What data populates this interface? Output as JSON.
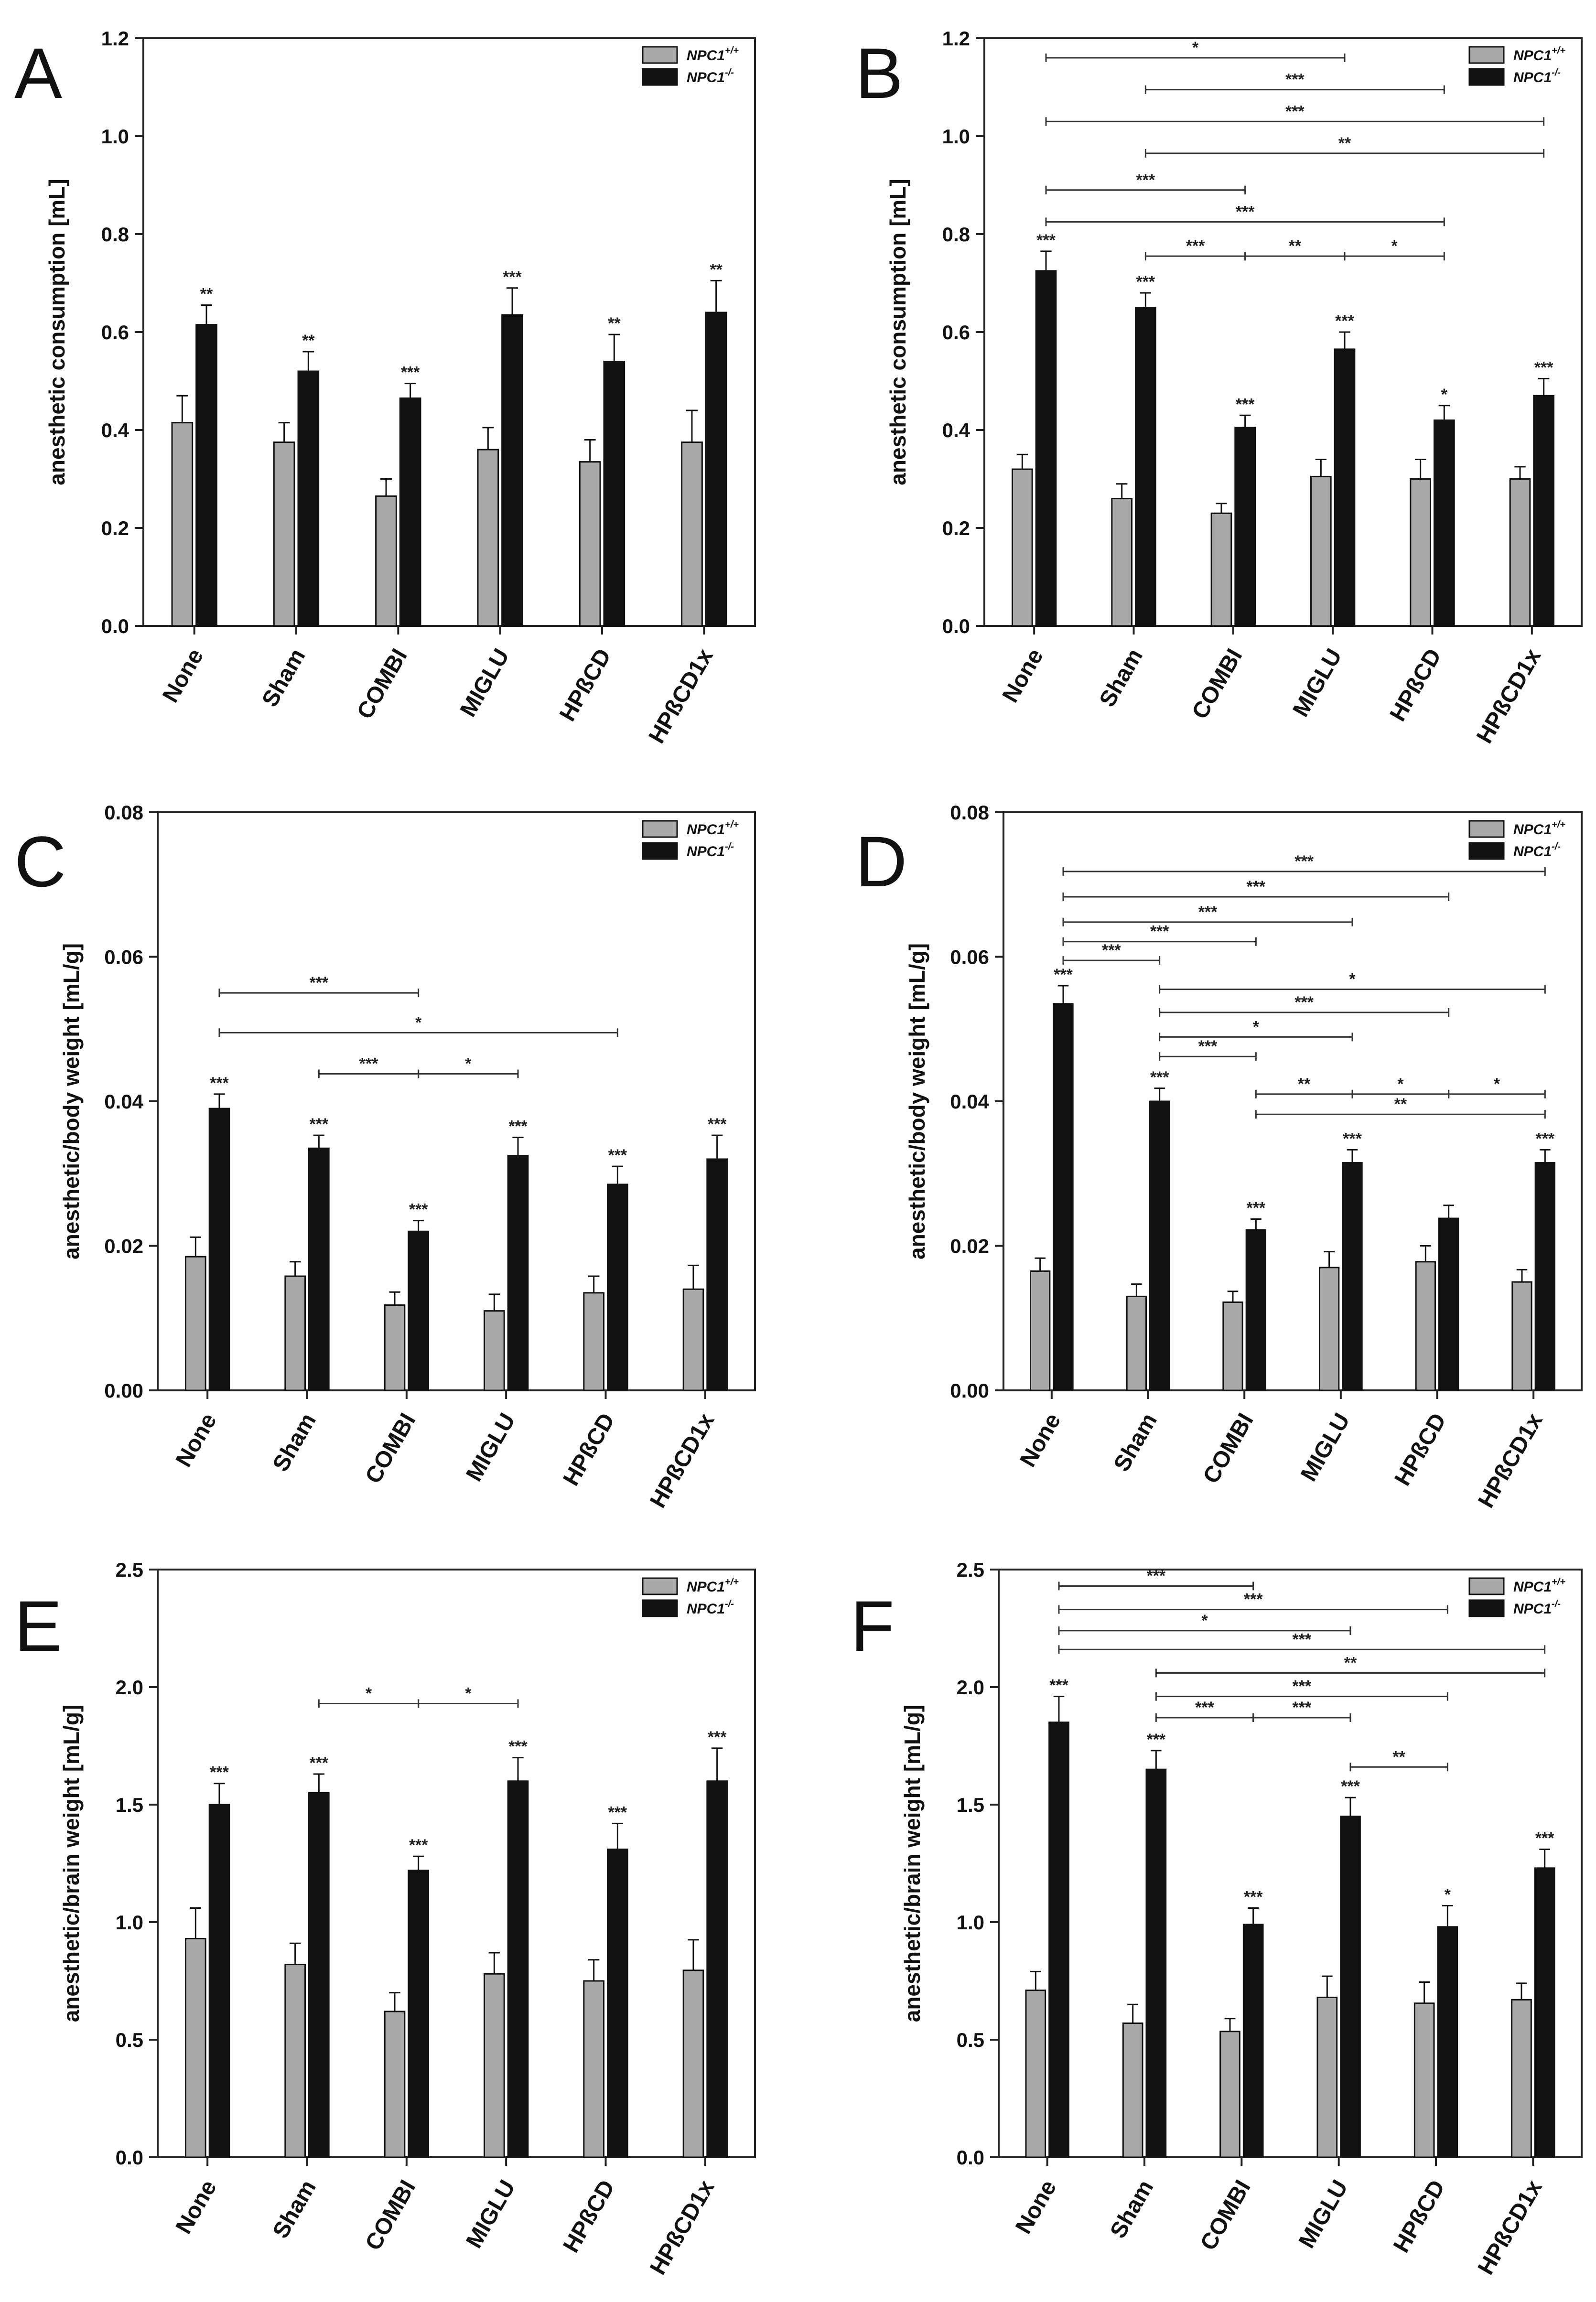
{
  "legend": {
    "wt": {
      "base": "NPC1",
      "sup": "+/+",
      "color": "#a9a9a9"
    },
    "ko": {
      "base": "NPC1",
      "sup": "-/-",
      "color": "#111111"
    }
  },
  "chart_data": [
    {
      "panel": "A",
      "type": "bar",
      "ylabel": "anesthetic consumption [mL]",
      "ylim": [
        0,
        1.2
      ],
      "yticks": [
        "0.0",
        "0.2",
        "0.4",
        "0.6",
        "0.8",
        "1.0",
        "1.2"
      ],
      "categories": [
        "None",
        "Sham",
        "COMBI",
        "MIGLU",
        "HPßCD",
        "HPßCD1x"
      ],
      "series": [
        {
          "name": "NPC1+/+",
          "values": [
            0.415,
            0.375,
            0.265,
            0.36,
            0.335,
            0.375
          ],
          "errors": [
            0.055,
            0.04,
            0.035,
            0.045,
            0.045,
            0.065
          ],
          "stars": [
            "",
            "",
            "",
            "",
            "",
            ""
          ]
        },
        {
          "name": "NPC1-/-",
          "values": [
            0.615,
            0.52,
            0.465,
            0.635,
            0.54,
            0.64
          ],
          "errors": [
            0.04,
            0.04,
            0.03,
            0.055,
            0.055,
            0.065
          ],
          "stars": [
            "**",
            "**",
            "***",
            "***",
            "**",
            "**"
          ]
        }
      ],
      "brackets": []
    },
    {
      "panel": "B",
      "type": "bar",
      "ylabel": "anesthetic consumption [mL]",
      "ylim": [
        0,
        1.2
      ],
      "yticks": [
        "0.0",
        "0.2",
        "0.4",
        "0.6",
        "0.8",
        "1.0",
        "1.2"
      ],
      "categories": [
        "None",
        "Sham",
        "COMBI",
        "MIGLU",
        "HPßCD",
        "HPßCD1x"
      ],
      "series": [
        {
          "name": "NPC1+/+",
          "values": [
            0.32,
            0.26,
            0.23,
            0.305,
            0.3,
            0.3
          ],
          "errors": [
            0.03,
            0.03,
            0.02,
            0.035,
            0.04,
            0.025
          ],
          "stars": [
            "",
            "",
            "",
            "",
            "",
            ""
          ]
        },
        {
          "name": "NPC1-/-",
          "values": [
            0.725,
            0.65,
            0.405,
            0.565,
            0.42,
            0.47
          ],
          "errors": [
            0.04,
            0.03,
            0.025,
            0.035,
            0.03,
            0.035
          ],
          "stars": [
            "***",
            "***",
            "***",
            "***",
            "*",
            "***"
          ]
        }
      ],
      "brackets": [
        {
          "from": 0,
          "to": 3,
          "y": 1.16,
          "label": "*"
        },
        {
          "from": 1,
          "to": 4,
          "y": 1.095,
          "label": "***"
        },
        {
          "from": 0,
          "to": 5,
          "y": 1.03,
          "label": "***"
        },
        {
          "from": 1,
          "to": 5,
          "y": 0.965,
          "label": "**"
        },
        {
          "from": 0,
          "to": 2,
          "y": 0.89,
          "label": "***"
        },
        {
          "from": 0,
          "to": 4,
          "y": 0.825,
          "label": "***"
        },
        {
          "from": 1,
          "to": 2,
          "y": 0.755,
          "label": "***"
        },
        {
          "from": 2,
          "to": 3,
          "y": 0.755,
          "label": "**"
        },
        {
          "from": 3,
          "to": 4,
          "y": 0.755,
          "label": "*"
        }
      ]
    },
    {
      "panel": "C",
      "type": "bar",
      "ylabel": "anesthetic/body weight [mL/g]",
      "ylim": [
        0,
        0.08
      ],
      "yticks": [
        "0.00",
        "0.02",
        "0.04",
        "0.06",
        "0.08"
      ],
      "categories": [
        "None",
        "Sham",
        "COMBI",
        "MIGLU",
        "HPßCD",
        "HPßCD1x"
      ],
      "series": [
        {
          "name": "NPC1+/+",
          "values": [
            0.0185,
            0.0158,
            0.0118,
            0.011,
            0.0135,
            0.014
          ],
          "errors": [
            0.0027,
            0.002,
            0.0018,
            0.0023,
            0.0023,
            0.0033
          ],
          "stars": [
            "",
            "",
            "",
            "",
            "",
            ""
          ]
        },
        {
          "name": "NPC1-/-",
          "values": [
            0.039,
            0.0335,
            0.022,
            0.0325,
            0.0285,
            0.032
          ],
          "errors": [
            0.002,
            0.0018,
            0.0015,
            0.0025,
            0.0025,
            0.0033
          ],
          "stars": [
            "***",
            "***",
            "***",
            "***",
            "***",
            "***"
          ]
        }
      ],
      "brackets": [
        {
          "from": 0,
          "to": 2,
          "y": 0.055,
          "label": "***"
        },
        {
          "from": 0,
          "to": 4,
          "y": 0.0495,
          "label": "*"
        },
        {
          "from": 1,
          "to": 2,
          "y": 0.0438,
          "label": "***"
        },
        {
          "from": 2,
          "to": 3,
          "y": 0.0438,
          "label": "*"
        }
      ]
    },
    {
      "panel": "D",
      "type": "bar",
      "ylabel": "anesthetic/body weight [mL/g]",
      "ylim": [
        0,
        0.08
      ],
      "yticks": [
        "0.00",
        "0.02",
        "0.04",
        "0.06",
        "0.08"
      ],
      "categories": [
        "None",
        "Sham",
        "COMBI",
        "MIGLU",
        "HPßCD",
        "HPßCD1x"
      ],
      "series": [
        {
          "name": "NPC1+/+",
          "values": [
            0.0165,
            0.013,
            0.0122,
            0.017,
            0.0178,
            0.015
          ],
          "errors": [
            0.0018,
            0.0017,
            0.0015,
            0.0022,
            0.0022,
            0.0017
          ],
          "stars": [
            "",
            "",
            "",
            "",
            "",
            ""
          ]
        },
        {
          "name": "NPC1-/-",
          "values": [
            0.0535,
            0.04,
            0.0222,
            0.0315,
            0.0238,
            0.0315
          ],
          "errors": [
            0.0025,
            0.0018,
            0.0015,
            0.0018,
            0.0018,
            0.0018
          ],
          "stars": [
            "***",
            "***",
            "***",
            "***",
            "",
            "***"
          ]
        }
      ],
      "brackets": [
        {
          "from": 0,
          "to": 5,
          "y": 0.0718,
          "label": "***"
        },
        {
          "from": 0,
          "to": 4,
          "y": 0.0683,
          "label": "***"
        },
        {
          "from": 0,
          "to": 3,
          "y": 0.0648,
          "label": "***"
        },
        {
          "from": 0,
          "to": 2,
          "y": 0.0621,
          "label": "***"
        },
        {
          "from": 0,
          "to": 1,
          "y": 0.0595,
          "label": "***"
        },
        {
          "from": 1,
          "to": 5,
          "y": 0.0555,
          "label": "*"
        },
        {
          "from": 1,
          "to": 4,
          "y": 0.0523,
          "label": "***"
        },
        {
          "from": 1,
          "to": 3,
          "y": 0.0489,
          "label": "*"
        },
        {
          "from": 1,
          "to": 2,
          "y": 0.0462,
          "label": "***"
        },
        {
          "from": 2,
          "to": 3,
          "y": 0.041,
          "label": "**"
        },
        {
          "from": 3,
          "to": 4,
          "y": 0.041,
          "label": "*"
        },
        {
          "from": 4,
          "to": 5,
          "y": 0.041,
          "label": "*"
        },
        {
          "from": 2,
          "to": 5,
          "y": 0.0382,
          "label": "**"
        }
      ]
    },
    {
      "panel": "E",
      "type": "bar",
      "ylabel": "anesthetic/brain weight [mL/g]",
      "ylim": [
        0,
        2.5
      ],
      "yticks": [
        "0.0",
        "0.5",
        "1.0",
        "1.5",
        "2.0",
        "2.5"
      ],
      "categories": [
        "None",
        "Sham",
        "COMBI",
        "MIGLU",
        "HPßCD",
        "HPßCD1x"
      ],
      "series": [
        {
          "name": "NPC1+/+",
          "values": [
            0.93,
            0.82,
            0.62,
            0.78,
            0.75,
            0.795
          ],
          "errors": [
            0.13,
            0.09,
            0.08,
            0.09,
            0.09,
            0.13
          ],
          "stars": [
            "",
            "",
            "",
            "",
            "",
            ""
          ]
        },
        {
          "name": "NPC1-/-",
          "values": [
            1.5,
            1.55,
            1.22,
            1.6,
            1.31,
            1.6
          ],
          "errors": [
            0.09,
            0.08,
            0.06,
            0.1,
            0.11,
            0.14
          ],
          "stars": [
            "***",
            "***",
            "***",
            "***",
            "***",
            "***"
          ]
        }
      ],
      "brackets": [
        {
          "from": 1,
          "to": 2,
          "y": 1.93,
          "label": "*"
        },
        {
          "from": 2,
          "to": 3,
          "y": 1.93,
          "label": "*"
        }
      ]
    },
    {
      "panel": "F",
      "type": "bar",
      "ylabel": "anesthetic/brain weight [mL/g]",
      "ylim": [
        0,
        2.5
      ],
      "yticks": [
        "0.0",
        "0.5",
        "1.0",
        "1.5",
        "2.0",
        "2.5"
      ],
      "categories": [
        "None",
        "Sham",
        "COMBI",
        "MIGLU",
        "HPßCD",
        "HPßCD1x"
      ],
      "series": [
        {
          "name": "NPC1+/+",
          "values": [
            0.71,
            0.57,
            0.535,
            0.68,
            0.655,
            0.67
          ],
          "errors": [
            0.08,
            0.08,
            0.055,
            0.09,
            0.09,
            0.07
          ],
          "stars": [
            "",
            "",
            "",
            "",
            "",
            ""
          ]
        },
        {
          "name": "NPC1-/-",
          "values": [
            1.85,
            1.65,
            0.99,
            1.45,
            0.98,
            1.23
          ],
          "errors": [
            0.11,
            0.08,
            0.07,
            0.08,
            0.09,
            0.08
          ],
          "stars": [
            "***",
            "***",
            "***",
            "***",
            "*",
            "***"
          ]
        }
      ],
      "brackets": [
        {
          "from": 0,
          "to": 2,
          "y": 2.43,
          "label": "***"
        },
        {
          "from": 0,
          "to": 4,
          "y": 2.33,
          "label": "***"
        },
        {
          "from": 0,
          "to": 3,
          "y": 2.24,
          "label": "*"
        },
        {
          "from": 0,
          "to": 5,
          "y": 2.16,
          "label": "***"
        },
        {
          "from": 1,
          "to": 5,
          "y": 2.06,
          "label": "**"
        },
        {
          "from": 1,
          "to": 4,
          "y": 1.96,
          "label": "***"
        },
        {
          "from": 1,
          "to": 2,
          "y": 1.87,
          "label": "***"
        },
        {
          "from": 2,
          "to": 3,
          "y": 1.87,
          "label": "***"
        },
        {
          "from": 3,
          "to": 4,
          "y": 1.66,
          "label": "**"
        }
      ]
    }
  ]
}
